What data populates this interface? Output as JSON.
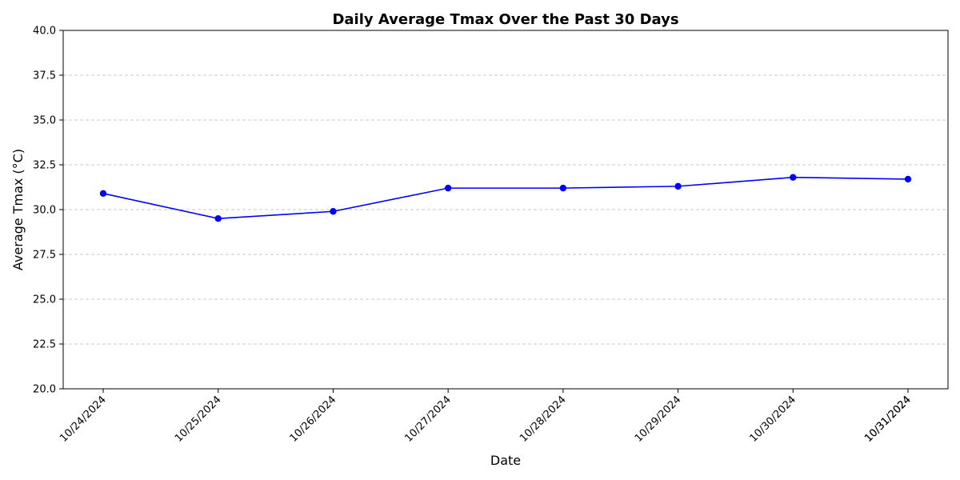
{
  "chart_data": {
    "type": "line",
    "title": "Daily Average Tmax Over the Past 30 Days",
    "xlabel": "Date",
    "ylabel": "Average Tmax (°C)",
    "x": [
      "10/24/2024",
      "10/25/2024",
      "10/26/2024",
      "10/27/2024",
      "10/28/2024",
      "10/29/2024",
      "10/30/2024",
      "10/31/2024"
    ],
    "x_tick_labels": [
      "10/24/2024",
      "10/25/2024",
      "10/26/2024",
      "10/27/2024",
      "10/28/2024",
      "10/29/2024",
      "10/30/2024",
      "10/31/2024",
      "10/31/2024"
    ],
    "series": [
      {
        "values": [
          30.9,
          29.5,
          29.9,
          31.2,
          31.2,
          31.3,
          31.8,
          31.7
        ],
        "color": "#0000ff",
        "marker": "circle"
      }
    ],
    "ylim": [
      20,
      40
    ],
    "y_ticks": [
      "20.0",
      "22.5",
      "25.0",
      "27.5",
      "30.0",
      "32.5",
      "35.0",
      "37.5",
      "40.0"
    ],
    "grid": "y-dashed",
    "legend": "none"
  }
}
